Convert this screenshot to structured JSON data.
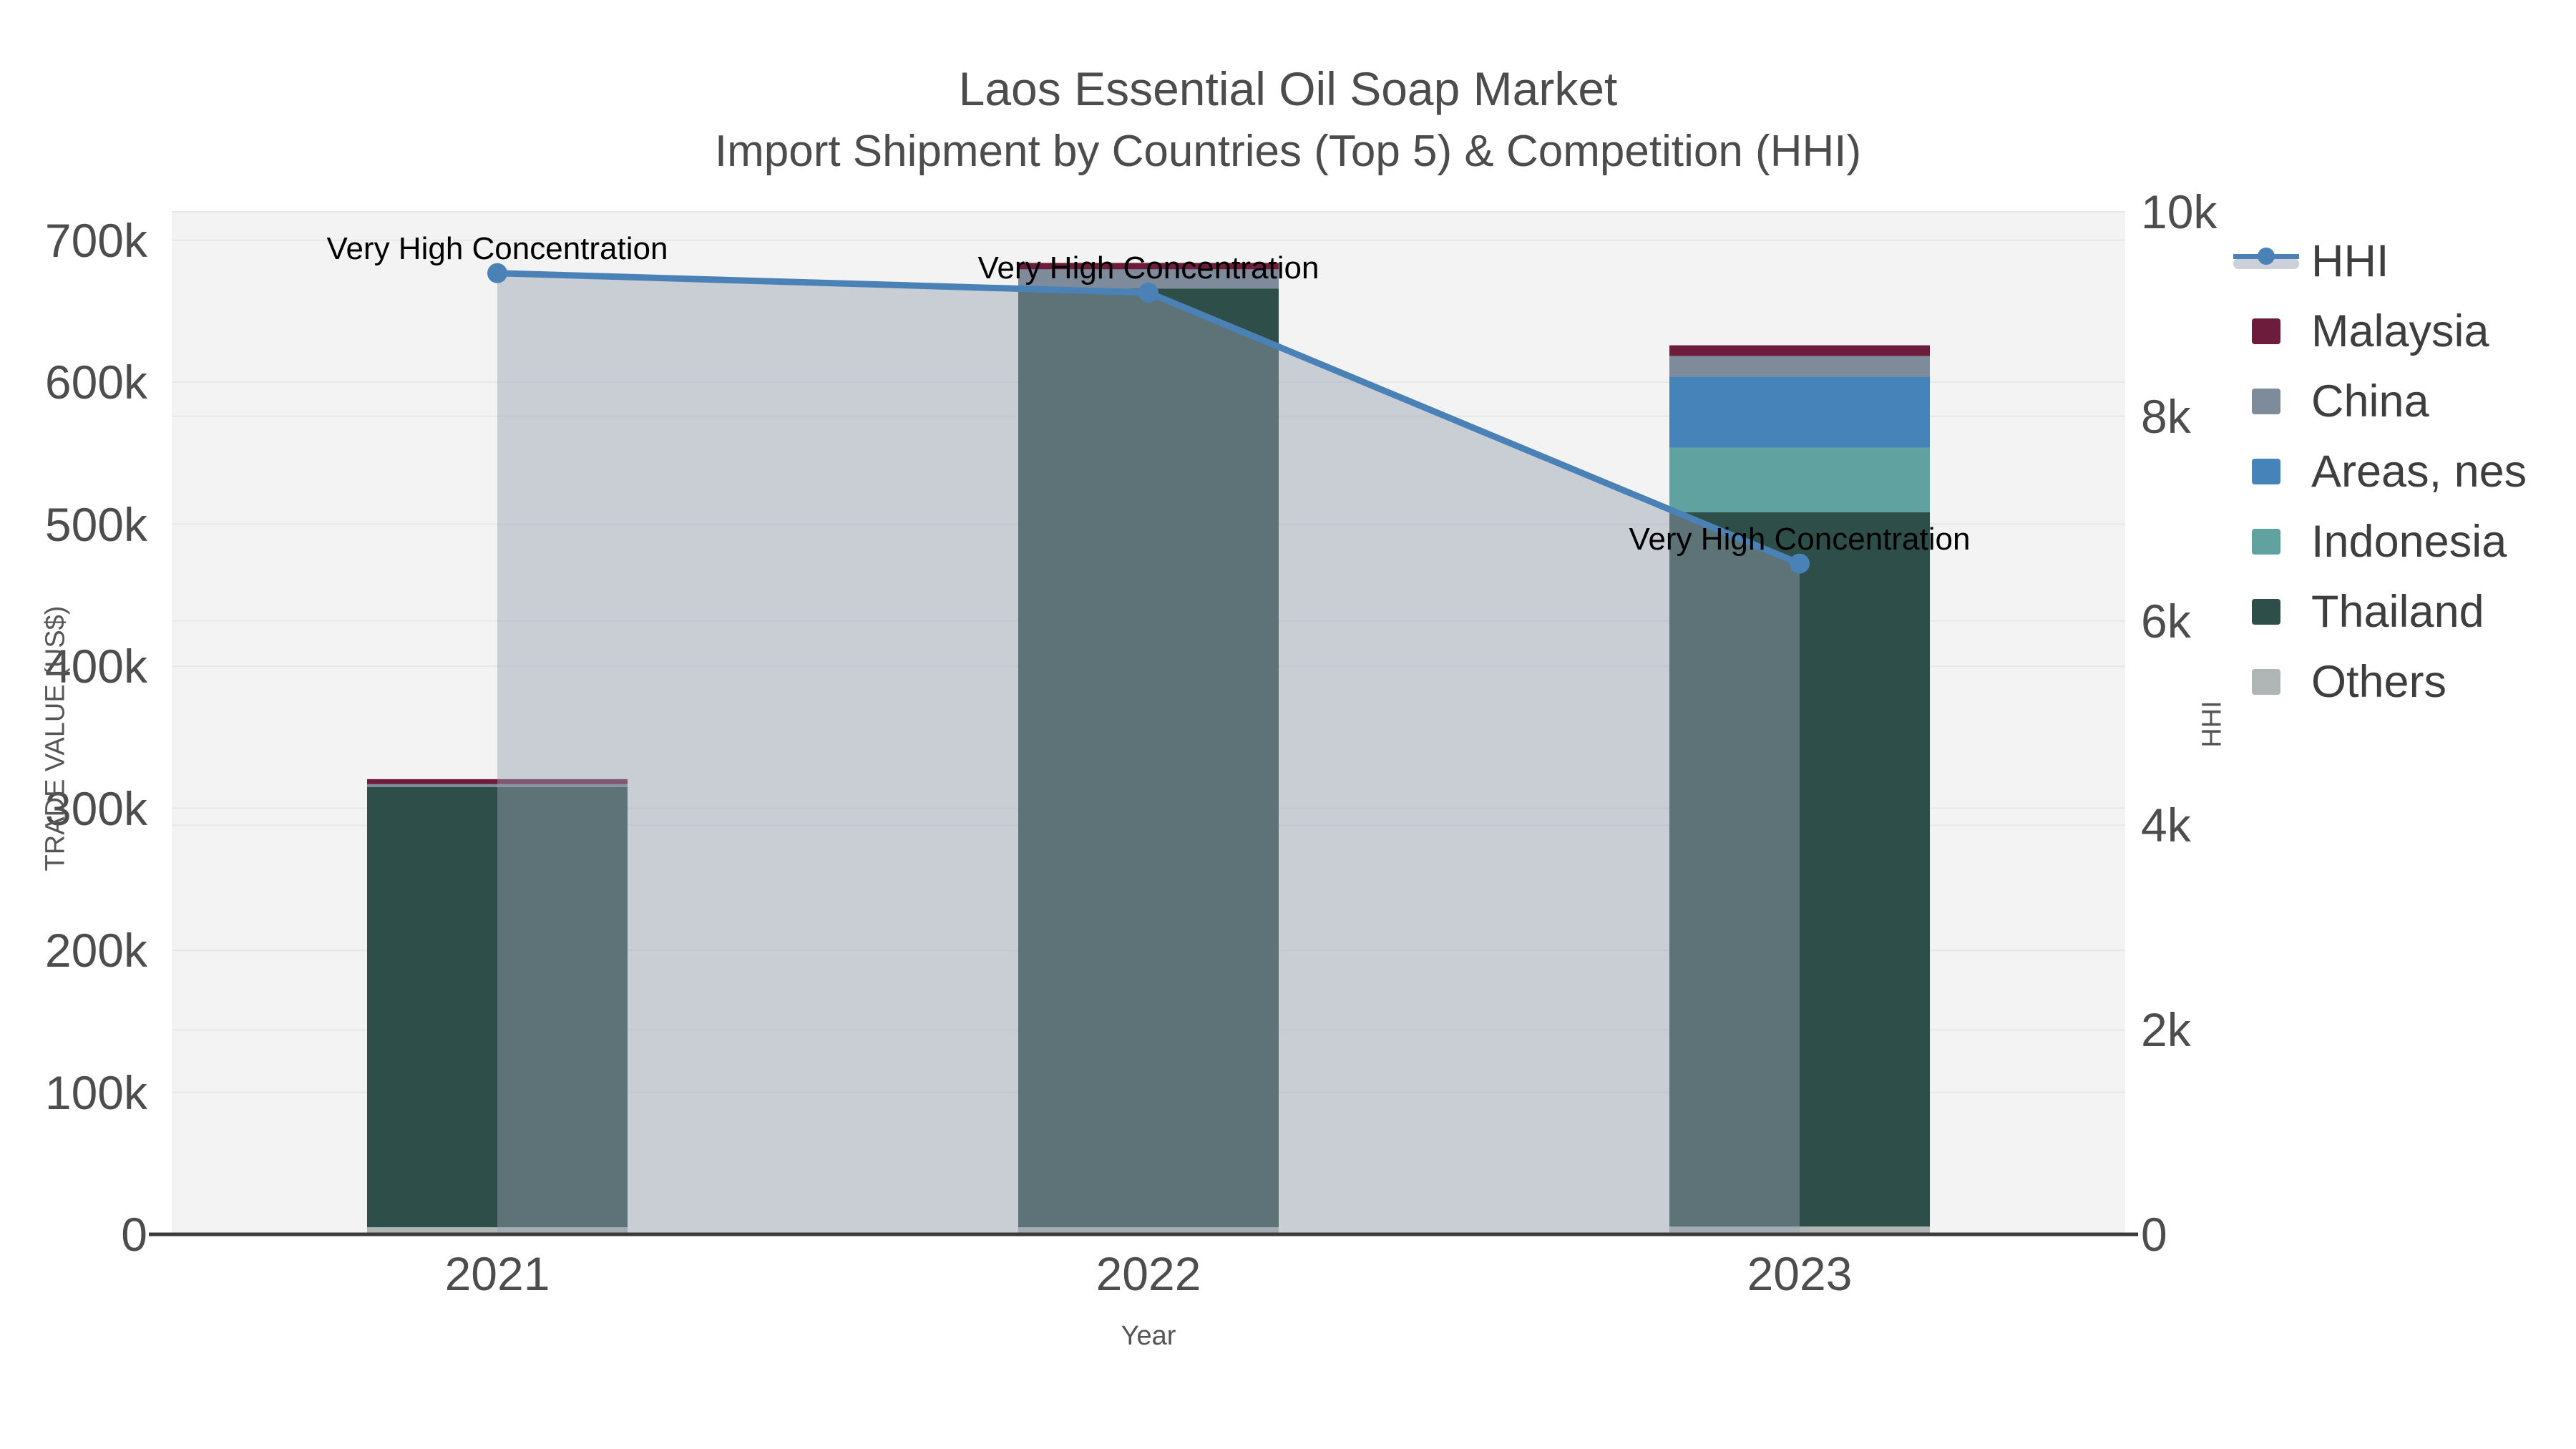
{
  "title": {
    "line1": "Laos Essential Oil Soap Market",
    "line2": "Import Shipment by Countries (Top 5) & Competition (HHI)"
  },
  "axes": {
    "left": {
      "name": "TRADE VALUE (US$)"
    },
    "right": {
      "name": "HHI"
    },
    "x": {
      "name": "Year"
    }
  },
  "legend": {
    "items": [
      {
        "label": "HHI",
        "type": "line"
      },
      {
        "label": "Malaysia",
        "type": "rect"
      },
      {
        "label": "China",
        "type": "rect"
      },
      {
        "label": "Areas, nes",
        "type": "rect"
      },
      {
        "label": "Indonesia",
        "type": "rect"
      },
      {
        "label": "Thailand",
        "type": "rect"
      },
      {
        "label": "Others",
        "type": "rect"
      }
    ]
  },
  "chart_data": {
    "type": "bar+line",
    "title": "Laos Essential Oil Soap Market — Import Shipment by Countries (Top 5) & Competition (HHI)",
    "categories": [
      "2021",
      "2022",
      "2023"
    ],
    "series": [
      {
        "name": "Malaysia",
        "type": "bar",
        "stack": true,
        "values": [
          3500,
          4500,
          7500
        ]
      },
      {
        "name": "China",
        "type": "bar",
        "stack": true,
        "values": [
          2000,
          13500,
          14500
        ]
      },
      {
        "name": "Areas, nes",
        "type": "bar",
        "stack": true,
        "values": [
          0,
          0,
          50000
        ]
      },
      {
        "name": "Indonesia",
        "type": "bar",
        "stack": true,
        "values": [
          0,
          0,
          45500
        ]
      },
      {
        "name": "Thailand",
        "type": "bar",
        "stack": true,
        "values": [
          310000,
          661000,
          503000
        ]
      },
      {
        "name": "Others",
        "type": "bar",
        "stack": true,
        "values": [
          5000,
          5000,
          5500
        ]
      }
    ],
    "stack_order_bottom_to_top": [
      "Others",
      "Thailand",
      "Indonesia",
      "Areas, nes",
      "China",
      "Malaysia"
    ],
    "line_series": {
      "name": "HHI",
      "axis": "right",
      "values": [
        9400,
        9210,
        6560
      ],
      "area": true
    },
    "annotations": [
      "Very High Concentration",
      "Very High Concentration",
      "Very High Concentration"
    ],
    "xlabel": "Year",
    "ylabel_left": "TRADE VALUE (US$)",
    "ylabel_right": "HHI",
    "ylim_left": [
      0,
      720000
    ],
    "ylim_right": [
      0,
      10000
    ],
    "left_ticks": {
      "values": [
        0,
        100000,
        200000,
        300000,
        400000,
        500000,
        600000,
        700000
      ],
      "labels": [
        "0",
        "100k",
        "200k",
        "300k",
        "400k",
        "500k",
        "600k",
        "700k"
      ]
    },
    "right_ticks": {
      "values": [
        0,
        2000,
        4000,
        6000,
        8000,
        10000
      ],
      "labels": [
        "0",
        "2k",
        "4k",
        "6k",
        "8k",
        "10k"
      ]
    },
    "grid": true,
    "legend_position": "right",
    "colors": {
      "Malaysia": "#6d1c3c",
      "China": "#7e8b9a",
      "Areas, nes": "#4583b9",
      "Indonesia": "#60a2a0",
      "Thailand": "#2e4f49",
      "Others": "#b0b5b6",
      "hhi_line": "#4a82b8",
      "hhi_area": "rgba(150,160,175,0.45)",
      "plot_bg": "#f3f3f3",
      "gridline": "#e7e7e7",
      "axis_line": "#3b3b3b",
      "hhi_band_icon": "#ccd1d9"
    }
  }
}
